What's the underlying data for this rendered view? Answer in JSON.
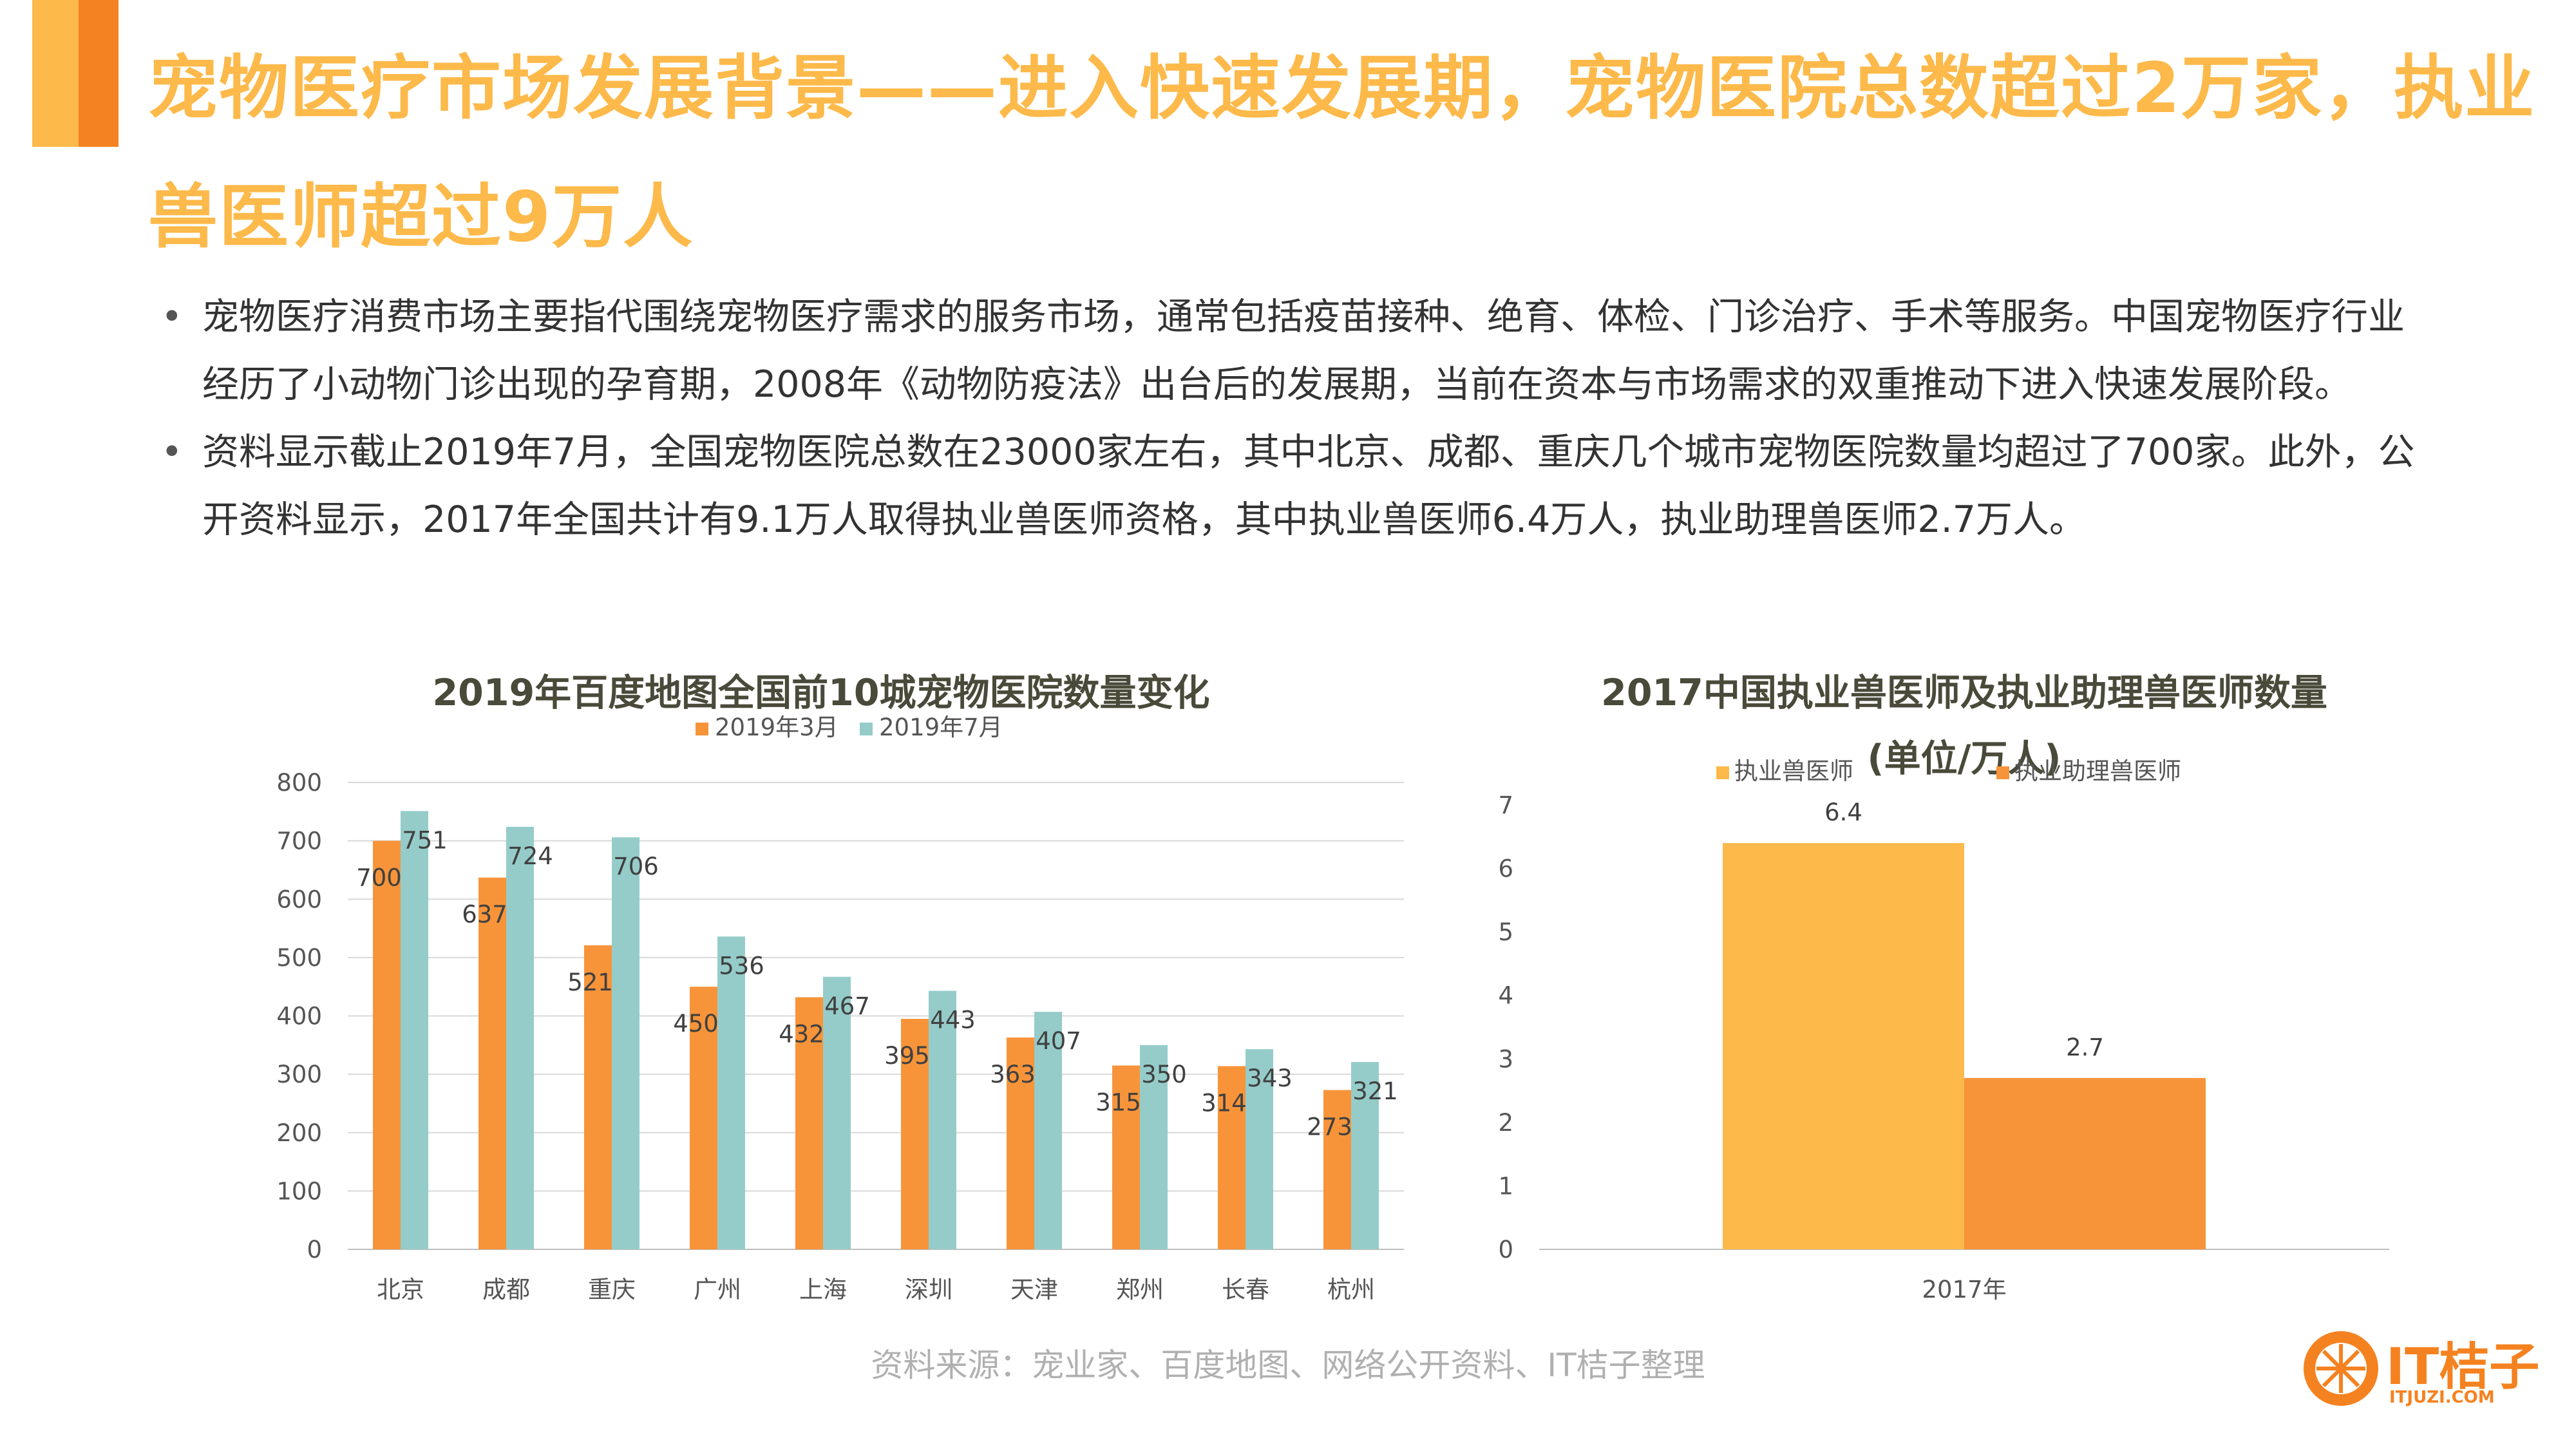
{
  "title": "宠物医疗市场发展背景——进入快速发展期，宠物医院总数超过2万家，执业兽医师超过9万人",
  "bullets": [
    "宠物医疗消费市场主要指代围绕宠物医疗需求的服务市场，通常包括疫苗接种、绝育、体检、门诊治疗、手术等服务。中国宠物医疗行业经历了小动物门诊出现的孕育期，2008年《动物防疫法》出台后的发展期，当前在资本与市场需求的双重推动下进入快速发展阶段。",
    "资料显示截止2019年7月，全国宠物医院总数在23000家左右，其中北京、成都、重庆几个城市宠物医院数量均超过了700家。此外，公开资料显示，2017年全国共计有9.1万人取得执业兽医师资格，其中执业兽医师6.4万人，执业助理兽医师2.7万人。"
  ],
  "bullet_symbol": "•",
  "source": "资料来源：宠业家、百度地图、网络公开资料、IT桔子整理",
  "logo": {
    "text": "IT桔子",
    "sub": "ITJUZI.COM"
  },
  "colors": {
    "accent": "#FDB94A",
    "orange": "#F7943A",
    "teal": "#95CCC9",
    "yellow": "#FDB94A"
  },
  "chart_data": [
    {
      "type": "bar",
      "title": "2019年百度地图全国前10城宠物医院数量变化",
      "categories": [
        "北京",
        "成都",
        "重庆",
        "广州",
        "上海",
        "深圳",
        "天津",
        "郑州",
        "长春",
        "杭州"
      ],
      "series": [
        {
          "name": "2019年3月",
          "color": "#F7943A",
          "values": [
            700,
            637,
            521,
            450,
            432,
            395,
            363,
            315,
            314,
            273
          ]
        },
        {
          "name": "2019年7月",
          "color": "#95CCC9",
          "values": [
            751,
            724,
            706,
            536,
            467,
            443,
            407,
            350,
            343,
            321
          ]
        }
      ],
      "ylim": [
        0,
        800
      ],
      "yticks": [
        0,
        100,
        200,
        300,
        400,
        500,
        600,
        700,
        800
      ],
      "grid": true,
      "legend": "top"
    },
    {
      "type": "bar",
      "title": "2017中国执业兽医师及执业助理兽医师数量",
      "subtitle": "(单位/万人)",
      "categories": [
        "2017年"
      ],
      "series": [
        {
          "name": "执业兽医师",
          "color": "#FDB94A",
          "values": [
            6.4
          ]
        },
        {
          "name": "执业助理兽医师",
          "color": "#F7943A",
          "values": [
            2.7
          ]
        }
      ],
      "ylim": [
        0,
        7
      ],
      "yticks": [
        0,
        1,
        2,
        3,
        4,
        5,
        6,
        7
      ],
      "grid": false,
      "legend": "top"
    }
  ]
}
